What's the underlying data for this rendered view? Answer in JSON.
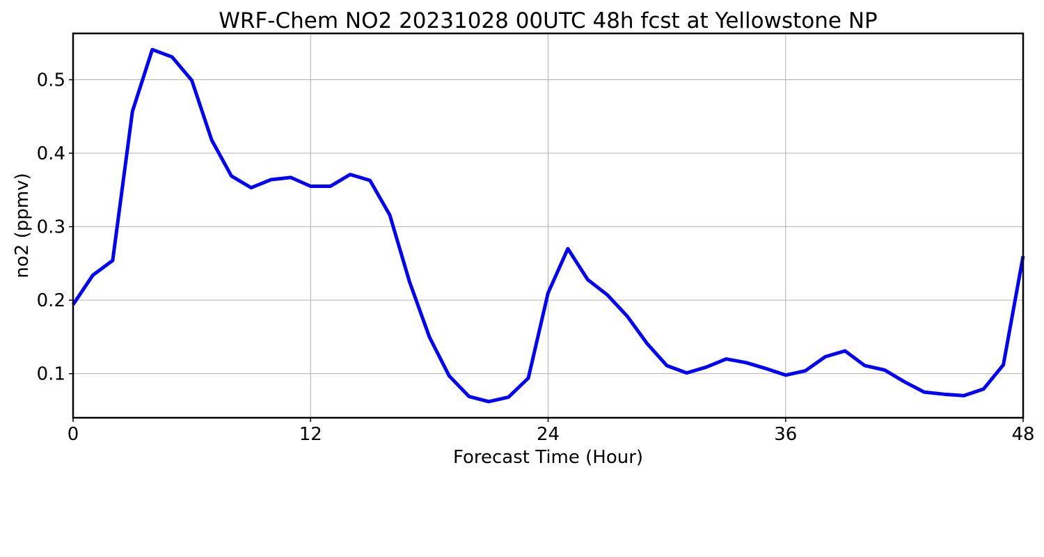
{
  "chart_data": {
    "type": "line",
    "title": "WRF-Chem NO2  20231028 00UTC 48h fcst at Yellowstone NP",
    "xlabel": "Forecast Time (Hour)",
    "ylabel": "no2  (ppmv)",
    "xlim": [
      0,
      48
    ],
    "ylim": [
      0.04,
      0.563
    ],
    "xticks": [
      0,
      12,
      24,
      36,
      48
    ],
    "xtick_labels": [
      "0",
      "12",
      "24",
      "36",
      "48"
    ],
    "yticks": [
      0.1,
      0.2,
      0.3,
      0.4,
      0.5
    ],
    "ytick_labels": [
      "0.1",
      "0.2",
      "0.3",
      "0.4",
      "0.5"
    ],
    "grid": true,
    "line_color": "#0000ff",
    "series": [
      {
        "x": [
          0,
          1,
          2,
          3,
          4,
          5,
          6,
          7,
          8,
          9,
          10,
          11,
          12,
          13,
          14,
          15,
          16,
          17,
          18,
          19,
          20,
          21,
          22,
          23,
          24,
          25,
          26,
          27,
          28,
          29,
          30,
          31,
          32,
          33,
          34,
          35,
          36,
          37,
          38,
          39,
          40,
          41,
          42,
          43,
          44,
          45,
          46,
          47,
          48
        ],
        "values": [
          0.194,
          0.234,
          0.254,
          0.457,
          0.541,
          0.531,
          0.499,
          0.418,
          0.369,
          0.353,
          0.364,
          0.367,
          0.355,
          0.355,
          0.371,
          0.363,
          0.316,
          0.225,
          0.15,
          0.097,
          0.069,
          0.062,
          0.068,
          0.094,
          0.21,
          0.27,
          0.228,
          0.207,
          0.178,
          0.141,
          0.111,
          0.101,
          0.109,
          0.12,
          0.115,
          0.107,
          0.098,
          0.104,
          0.123,
          0.131,
          0.111,
          0.105,
          0.089,
          0.075,
          0.072,
          0.07,
          0.079,
          0.112,
          0.26
        ]
      }
    ]
  }
}
